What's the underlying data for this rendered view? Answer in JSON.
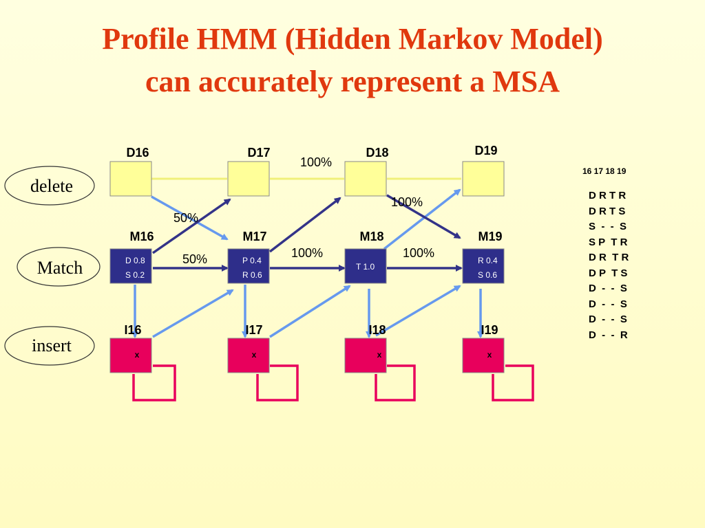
{
  "title": {
    "line1": "Profile HMM (Hidden Markov Model)",
    "line2": "can accurately represent a MSA"
  },
  "legend": {
    "delete": "delete",
    "match": "Match",
    "insert": "insert"
  },
  "delete_states": [
    "D16",
    "D17",
    "D18",
    "D19"
  ],
  "match_states": [
    {
      "label": "M16",
      "emissions": [
        "D 0.8",
        "S 0.2"
      ]
    },
    {
      "label": "M17",
      "emissions": [
        "P 0.4",
        "R 0.6"
      ]
    },
    {
      "label": "M18",
      "emissions": [
        "T 1.0"
      ]
    },
    {
      "label": "M19",
      "emissions": [
        "R 0.4",
        "S 0.6"
      ]
    }
  ],
  "insert_states": [
    {
      "label": "I16",
      "emission": "x"
    },
    {
      "label": "I17",
      "emission": "x"
    },
    {
      "label": "I18",
      "emission": "x"
    },
    {
      "label": "I19",
      "emission": "x"
    }
  ],
  "transition_labels": {
    "d16_m17": "50%",
    "m16_m17": "50%",
    "d17_d18": "100%",
    "d18_m19": "100%",
    "m17_m18": "100%",
    "m18_m19": "100%"
  },
  "msa": {
    "header": "16 17 18 19",
    "rows": [
      "D R T R",
      "D R T S",
      "S  -  -  S",
      "S P  T R",
      "D R  T R",
      "D P  T S",
      "D  -  -  S",
      "D  -  -  S",
      "D  -  -  S",
      "D  -  -  R"
    ]
  },
  "colors": {
    "title": "#e0380e",
    "delete_fill": "#ffff99",
    "match_fill": "#2e2e8a",
    "insert_fill": "#e8005c",
    "arrow_dark": "#333388",
    "arrow_light": "#6699ee",
    "loop": "#e8005c",
    "delete_line": "#f0f07a"
  }
}
